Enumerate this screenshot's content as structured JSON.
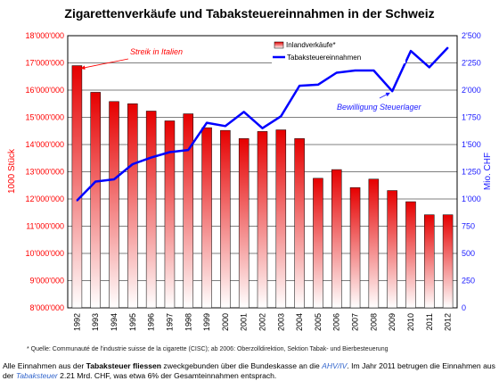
{
  "chart_data": {
    "type": "bar",
    "title": "Zigarettenverkäufe und Tabaksteuereinnahmen in der Schweiz",
    "categories": [
      "1992",
      "1993",
      "1994",
      "1995",
      "1996",
      "1997",
      "1998",
      "1999",
      "2000",
      "2001",
      "2002",
      "2003",
      "2004",
      "2005",
      "2006",
      "2007",
      "2008",
      "2009",
      "2010",
      "2011",
      "2012"
    ],
    "series": [
      {
        "name": "Inlandverkäufe*",
        "type": "bar",
        "axis": "left",
        "color": "#ff0000",
        "values": [
          16900000,
          15920000,
          15580000,
          15500000,
          15230000,
          14870000,
          15130000,
          14620000,
          14520000,
          14220000,
          14480000,
          14540000,
          14220000,
          12760000,
          13080000,
          12420000,
          12730000,
          12310000,
          11900000,
          11420000,
          11420000
        ]
      },
      {
        "name": "Tabaksteuereinnahmen",
        "type": "line",
        "axis": "right",
        "color": "#0000ff",
        "values": [
          985,
          1160,
          1180,
          1320,
          1380,
          1430,
          1450,
          1700,
          1670,
          1800,
          1650,
          1760,
          2040,
          2050,
          2160,
          2180,
          2180,
          1990,
          2360,
          2210,
          2390
        ]
      }
    ],
    "y_left": {
      "label": "1000 Stück",
      "min": 8000000,
      "max": 18000000,
      "ticks": [
        "8'000'000",
        "9'000'000",
        "10'000'000",
        "11'000'000",
        "12'000'000",
        "13'000'000",
        "14'000'000",
        "15'000'000",
        "16'000'000",
        "17'000'000",
        "18'000'000"
      ]
    },
    "y_right": {
      "label": "Mio. CHF",
      "min": 0,
      "max": 2500,
      "ticks": [
        "0",
        "250",
        "500",
        "750",
        "1'000",
        "1'250",
        "1'500",
        "1'750",
        "2'000",
        "2'250",
        "2'500"
      ]
    },
    "annotations": [
      {
        "text": "Streik in Italien",
        "category": "1992",
        "series": 0,
        "color": "#ff0000"
      },
      {
        "text": "Bewilligung Steuerlager",
        "category": "2009",
        "series": 1,
        "color": "#1a1aff"
      }
    ],
    "grid": true,
    "legend": "top-right"
  },
  "footnote": "* Quelle: Communauté de l'industrie suisse de la cigarette (CISC); ab 2006: Oberzolldirektion, Sektion Tabak- und Bierbesteuerung",
  "description": {
    "p1": "Alle Einnahmen aus der ",
    "b1": "Tabaksteuer",
    "p2": " ",
    "b2": "fliessen",
    "p3": " zweckgebunden über die Bundeskasse an die ",
    "l1": "AHV/IV",
    "p4": ". Im Jahr 2011 betrugen die Einnahmen aus der ",
    "l2": "Tabaksteuer",
    "p5": " 2.21 Mrd. CHF, was etwa 6% der Gesamteinnahmen entsprach."
  }
}
